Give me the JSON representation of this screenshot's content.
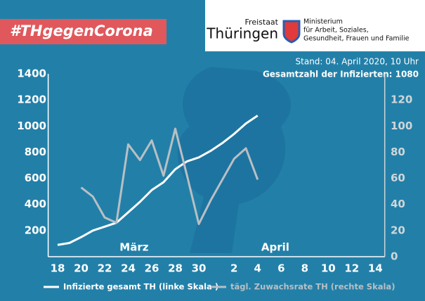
{
  "header": {
    "hashtag": "#THgegenCorona",
    "state_small": "Freistaat",
    "state": "Thüringen",
    "ministry": [
      "Ministerium",
      "für Arbeit, Soziales,",
      "Gesundheit, Frauen und Familie"
    ]
  },
  "chart_data": {
    "type": "line",
    "subtitle": "Stand: 04. April 2020, 10 Uhr",
    "annotation": "Gesamtzahl der Infizierten: 1080",
    "month_labels": [
      {
        "x": 24.5,
        "label": "März"
      },
      {
        "x": 36.5,
        "label": "April"
      }
    ],
    "x": [
      18,
      19,
      20,
      21,
      22,
      23,
      24,
      25,
      26,
      27,
      28,
      29,
      30,
      31,
      32,
      33,
      34,
      35
    ],
    "xlim": [
      17.2,
      45.8
    ],
    "xticks": [
      18,
      20,
      22,
      24,
      26,
      28,
      30,
      {
        "value": 33,
        "label": "2"
      },
      {
        "value": 35,
        "label": "4"
      },
      {
        "value": 37,
        "label": "6"
      },
      {
        "value": 39,
        "label": "8"
      },
      {
        "value": 41,
        "label": "10"
      },
      {
        "value": 43,
        "label": "12"
      },
      {
        "value": 45,
        "label": "14"
      }
    ],
    "ylim": [
      0,
      1400
    ],
    "yticks": [
      200,
      400,
      600,
      800,
      1000,
      1200,
      1400
    ],
    "y2lim": [
      0,
      140
    ],
    "y2ticks": [
      0,
      20,
      40,
      60,
      80,
      100,
      120
    ],
    "series": [
      {
        "name": "Infizierte gesamt TH (linke Skala )",
        "color": "#ffffff",
        "values": [
          90,
          105,
          150,
          200,
          230,
          260,
          340,
          420,
          510,
          570,
          670,
          730,
          760,
          810,
          870,
          940,
          1020,
          1080
        ]
      },
      {
        "name": "tägl. Zuwachsrate TH (rechte Skala)",
        "color": "#b9bfc4",
        "axis": "y2",
        "values": [
          null,
          null,
          53,
          46,
          30,
          26,
          86,
          74,
          89,
          62,
          98,
          62,
          25,
          43,
          59,
          75,
          83,
          59
        ]
      }
    ]
  }
}
